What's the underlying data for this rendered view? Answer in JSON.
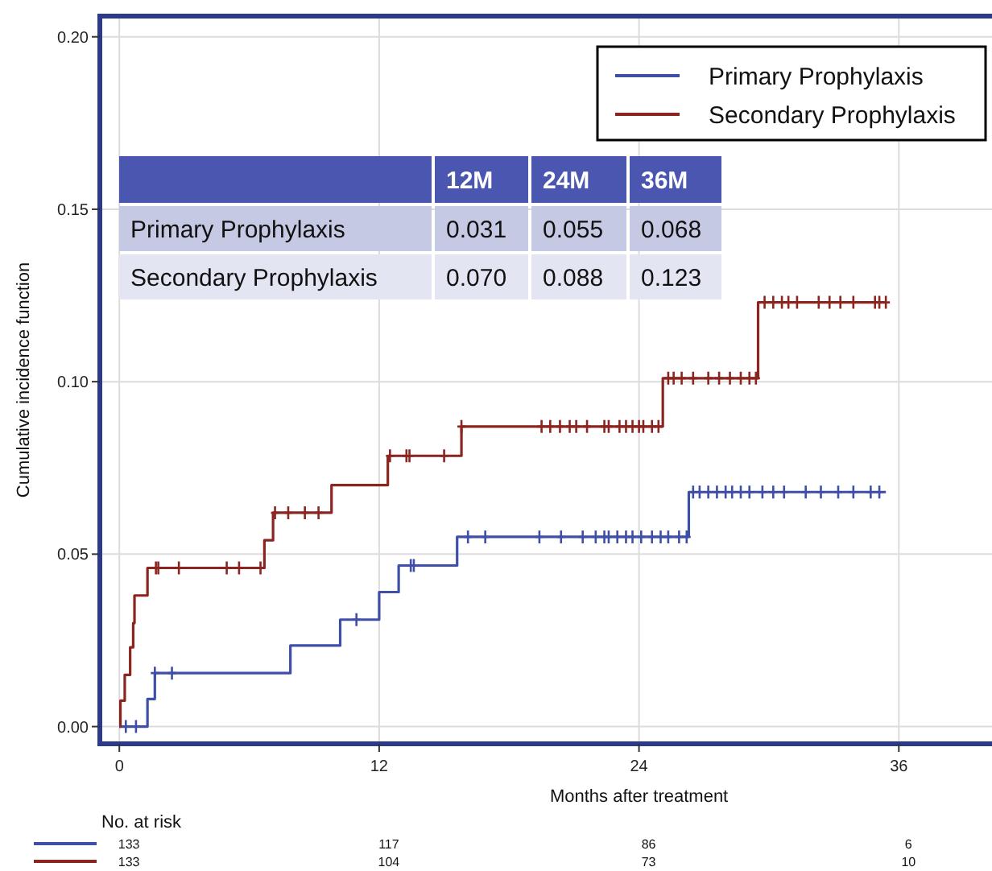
{
  "chart_data": {
    "type": "step",
    "xlabel": "Months after treatment",
    "ylabel": "Cumulative incidence function",
    "xlim": [
      -0.9,
      40.6
    ],
    "ylim": [
      -0.005,
      0.206
    ],
    "xticks": [
      0,
      12,
      24,
      36
    ],
    "yticks": [
      {
        "value": 0,
        "label": "0.00"
      },
      {
        "value": 0.05,
        "label": "0.05"
      },
      {
        "value": 0.1,
        "label": "0.10"
      },
      {
        "value": 0.15,
        "label": "0.15"
      },
      {
        "value": 0.2,
        "label": "0.20"
      }
    ],
    "grid": true,
    "legend": "top right",
    "series": [
      {
        "name": "Primary Prophylaxis",
        "type": "step",
        "color": "#3f4fa8",
        "x": [
          0,
          1.3,
          1.64,
          7.9,
          10.2,
          12.0,
          12.9,
          15.6,
          26.3,
          35.4
        ],
        "values": [
          0,
          0.008,
          0.0155,
          0.0235,
          0.031,
          0.039,
          0.0467,
          0.055,
          0.068,
          0.068
        ]
      },
      {
        "name": "Secondary Prophylaxis",
        "type": "step",
        "color": "#8b2520",
        "x": [
          0,
          0.05,
          0.25,
          0.5,
          0.64,
          0.7,
          1.3,
          6.7,
          7.1,
          9.8,
          12.4,
          15.8,
          25.1,
          29.5,
          35.4
        ],
        "values": [
          0,
          0.0075,
          0.015,
          0.023,
          0.03,
          0.038,
          0.046,
          0.054,
          0.062,
          0.07,
          0.0785,
          0.087,
          0.101,
          0.123,
          0.123
        ]
      },
      {
        "type": "scatter",
        "marker": "cross",
        "color": "#3f4fa8",
        "x": [
          0.3,
          0.77,
          1.64,
          2.43,
          10.95,
          13.46,
          13.6,
          16.1,
          16.9,
          19.4,
          20.4,
          21.4,
          22.0,
          22.4,
          22.6,
          23.0,
          23.4,
          23.7,
          24.1,
          24.6,
          25.0,
          25.35,
          25.85,
          26.2,
          26.5,
          26.8,
          27.2,
          27.6,
          28.0,
          28.3,
          28.7,
          29.1,
          29.7,
          30.2,
          30.7,
          31.7,
          32.4,
          33.2,
          33.9,
          34.7,
          35.1
        ],
        "values": [
          0,
          0,
          0.0155,
          0.0155,
          0.031,
          0.0467,
          0.0467,
          0.055,
          0.055,
          0.055,
          0.055,
          0.055,
          0.055,
          0.055,
          0.055,
          0.055,
          0.055,
          0.055,
          0.055,
          0.055,
          0.055,
          0.055,
          0.055,
          0.055,
          0.068,
          0.068,
          0.068,
          0.068,
          0.068,
          0.068,
          0.068,
          0.068,
          0.068,
          0.068,
          0.068,
          0.068,
          0.068,
          0.068,
          0.068,
          0.068,
          0.068
        ]
      },
      {
        "type": "scatter",
        "marker": "cross",
        "color": "#8b2520",
        "x": [
          1.69,
          1.8,
          2.75,
          4.96,
          5.53,
          6.52,
          7.19,
          7.8,
          8.57,
          9.2,
          12.5,
          13.26,
          13.4,
          15.0,
          15.8,
          19.5,
          19.9,
          20.35,
          20.8,
          21.1,
          21.6,
          22.4,
          22.6,
          23.1,
          23.4,
          23.7,
          24.0,
          24.2,
          24.6,
          24.9,
          25.35,
          25.6,
          25.97,
          26.5,
          27.2,
          27.7,
          28.2,
          28.7,
          29.1,
          29.4,
          29.8,
          30.2,
          30.6,
          30.9,
          31.3,
          32.3,
          32.8,
          33.3,
          33.9,
          34.9,
          35.1,
          35.4
        ],
        "values": [
          0.046,
          0.046,
          0.046,
          0.046,
          0.046,
          0.046,
          0.062,
          0.062,
          0.062,
          0.062,
          0.0785,
          0.0785,
          0.0785,
          0.0785,
          0.087,
          0.087,
          0.087,
          0.087,
          0.087,
          0.087,
          0.087,
          0.087,
          0.087,
          0.087,
          0.087,
          0.087,
          0.087,
          0.087,
          0.087,
          0.087,
          0.101,
          0.101,
          0.101,
          0.101,
          0.101,
          0.101,
          0.101,
          0.101,
          0.101,
          0.101,
          0.123,
          0.123,
          0.123,
          0.123,
          0.123,
          0.123,
          0.123,
          0.123,
          0.123,
          0.123,
          0.123,
          0.123
        ]
      }
    ],
    "annotations": [
      "12M",
      "24M",
      "36M",
      "Primary Prophylaxis",
      "0.031",
      "0.055",
      "0.068",
      "Secondary Prophylaxis",
      "0.070",
      "0.088",
      "0.123",
      "No. at risk",
      "133",
      "117",
      "86",
      "6",
      "133",
      "104",
      "73",
      "10"
    ]
  }
}
